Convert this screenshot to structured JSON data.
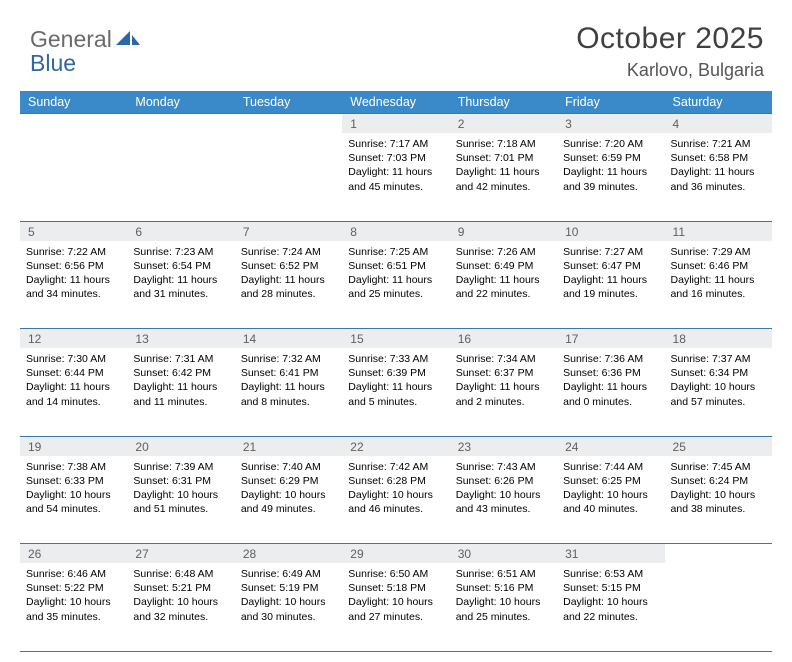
{
  "logo": {
    "word1": "General",
    "word2": "Blue"
  },
  "title": "October 2025",
  "location": "Karlovo, Bulgaria",
  "colors": {
    "header_bar": "#3a8ac9",
    "daynum_bg": "#ecedee",
    "grid_line": "#3a78a8",
    "page_bg": "#ffffff",
    "title_color": "#404040",
    "location_color": "#555555",
    "logo_gray": "#6a6a6a",
    "logo_blue": "#2e67a6",
    "text_color": "#000000"
  },
  "typography": {
    "title_fontsize": 30,
    "location_fontsize": 18,
    "dow_fontsize": 12.5,
    "daynum_fontsize": 12,
    "detail_fontsize": 10.5,
    "font_family": "Arial"
  },
  "days_of_week": [
    "Sunday",
    "Monday",
    "Tuesday",
    "Wednesday",
    "Thursday",
    "Friday",
    "Saturday"
  ],
  "weeks": [
    {
      "nums": [
        "",
        "",
        "",
        "1",
        "2",
        "3",
        "4"
      ],
      "cells": [
        null,
        null,
        null,
        {
          "sunrise": "7:17 AM",
          "sunset": "7:03 PM",
          "daylight_l1": "Daylight: 11 hours",
          "daylight_l2": "and 45 minutes."
        },
        {
          "sunrise": "7:18 AM",
          "sunset": "7:01 PM",
          "daylight_l1": "Daylight: 11 hours",
          "daylight_l2": "and 42 minutes."
        },
        {
          "sunrise": "7:20 AM",
          "sunset": "6:59 PM",
          "daylight_l1": "Daylight: 11 hours",
          "daylight_l2": "and 39 minutes."
        },
        {
          "sunrise": "7:21 AM",
          "sunset": "6:58 PM",
          "daylight_l1": "Daylight: 11 hours",
          "daylight_l2": "and 36 minutes."
        }
      ]
    },
    {
      "nums": [
        "5",
        "6",
        "7",
        "8",
        "9",
        "10",
        "11"
      ],
      "cells": [
        {
          "sunrise": "7:22 AM",
          "sunset": "6:56 PM",
          "daylight_l1": "Daylight: 11 hours",
          "daylight_l2": "and 34 minutes."
        },
        {
          "sunrise": "7:23 AM",
          "sunset": "6:54 PM",
          "daylight_l1": "Daylight: 11 hours",
          "daylight_l2": "and 31 minutes."
        },
        {
          "sunrise": "7:24 AM",
          "sunset": "6:52 PM",
          "daylight_l1": "Daylight: 11 hours",
          "daylight_l2": "and 28 minutes."
        },
        {
          "sunrise": "7:25 AM",
          "sunset": "6:51 PM",
          "daylight_l1": "Daylight: 11 hours",
          "daylight_l2": "and 25 minutes."
        },
        {
          "sunrise": "7:26 AM",
          "sunset": "6:49 PM",
          "daylight_l1": "Daylight: 11 hours",
          "daylight_l2": "and 22 minutes."
        },
        {
          "sunrise": "7:27 AM",
          "sunset": "6:47 PM",
          "daylight_l1": "Daylight: 11 hours",
          "daylight_l2": "and 19 minutes."
        },
        {
          "sunrise": "7:29 AM",
          "sunset": "6:46 PM",
          "daylight_l1": "Daylight: 11 hours",
          "daylight_l2": "and 16 minutes."
        }
      ]
    },
    {
      "nums": [
        "12",
        "13",
        "14",
        "15",
        "16",
        "17",
        "18"
      ],
      "cells": [
        {
          "sunrise": "7:30 AM",
          "sunset": "6:44 PM",
          "daylight_l1": "Daylight: 11 hours",
          "daylight_l2": "and 14 minutes."
        },
        {
          "sunrise": "7:31 AM",
          "sunset": "6:42 PM",
          "daylight_l1": "Daylight: 11 hours",
          "daylight_l2": "and 11 minutes."
        },
        {
          "sunrise": "7:32 AM",
          "sunset": "6:41 PM",
          "daylight_l1": "Daylight: 11 hours",
          "daylight_l2": "and 8 minutes."
        },
        {
          "sunrise": "7:33 AM",
          "sunset": "6:39 PM",
          "daylight_l1": "Daylight: 11 hours",
          "daylight_l2": "and 5 minutes."
        },
        {
          "sunrise": "7:34 AM",
          "sunset": "6:37 PM",
          "daylight_l1": "Daylight: 11 hours",
          "daylight_l2": "and 2 minutes."
        },
        {
          "sunrise": "7:36 AM",
          "sunset": "6:36 PM",
          "daylight_l1": "Daylight: 11 hours",
          "daylight_l2": "and 0 minutes."
        },
        {
          "sunrise": "7:37 AM",
          "sunset": "6:34 PM",
          "daylight_l1": "Daylight: 10 hours",
          "daylight_l2": "and 57 minutes."
        }
      ]
    },
    {
      "nums": [
        "19",
        "20",
        "21",
        "22",
        "23",
        "24",
        "25"
      ],
      "cells": [
        {
          "sunrise": "7:38 AM",
          "sunset": "6:33 PM",
          "daylight_l1": "Daylight: 10 hours",
          "daylight_l2": "and 54 minutes."
        },
        {
          "sunrise": "7:39 AM",
          "sunset": "6:31 PM",
          "daylight_l1": "Daylight: 10 hours",
          "daylight_l2": "and 51 minutes."
        },
        {
          "sunrise": "7:40 AM",
          "sunset": "6:29 PM",
          "daylight_l1": "Daylight: 10 hours",
          "daylight_l2": "and 49 minutes."
        },
        {
          "sunrise": "7:42 AM",
          "sunset": "6:28 PM",
          "daylight_l1": "Daylight: 10 hours",
          "daylight_l2": "and 46 minutes."
        },
        {
          "sunrise": "7:43 AM",
          "sunset": "6:26 PM",
          "daylight_l1": "Daylight: 10 hours",
          "daylight_l2": "and 43 minutes."
        },
        {
          "sunrise": "7:44 AM",
          "sunset": "6:25 PM",
          "daylight_l1": "Daylight: 10 hours",
          "daylight_l2": "and 40 minutes."
        },
        {
          "sunrise": "7:45 AM",
          "sunset": "6:24 PM",
          "daylight_l1": "Daylight: 10 hours",
          "daylight_l2": "and 38 minutes."
        }
      ]
    },
    {
      "nums": [
        "26",
        "27",
        "28",
        "29",
        "30",
        "31",
        ""
      ],
      "cells": [
        {
          "sunrise": "6:46 AM",
          "sunset": "5:22 PM",
          "daylight_l1": "Daylight: 10 hours",
          "daylight_l2": "and 35 minutes."
        },
        {
          "sunrise": "6:48 AM",
          "sunset": "5:21 PM",
          "daylight_l1": "Daylight: 10 hours",
          "daylight_l2": "and 32 minutes."
        },
        {
          "sunrise": "6:49 AM",
          "sunset": "5:19 PM",
          "daylight_l1": "Daylight: 10 hours",
          "daylight_l2": "and 30 minutes."
        },
        {
          "sunrise": "6:50 AM",
          "sunset": "5:18 PM",
          "daylight_l1": "Daylight: 10 hours",
          "daylight_l2": "and 27 minutes."
        },
        {
          "sunrise": "6:51 AM",
          "sunset": "5:16 PM",
          "daylight_l1": "Daylight: 10 hours",
          "daylight_l2": "and 25 minutes."
        },
        {
          "sunrise": "6:53 AM",
          "sunset": "5:15 PM",
          "daylight_l1": "Daylight: 10 hours",
          "daylight_l2": "and 22 minutes."
        },
        null
      ]
    }
  ],
  "labels": {
    "sunrise": "Sunrise:",
    "sunset": "Sunset:"
  }
}
